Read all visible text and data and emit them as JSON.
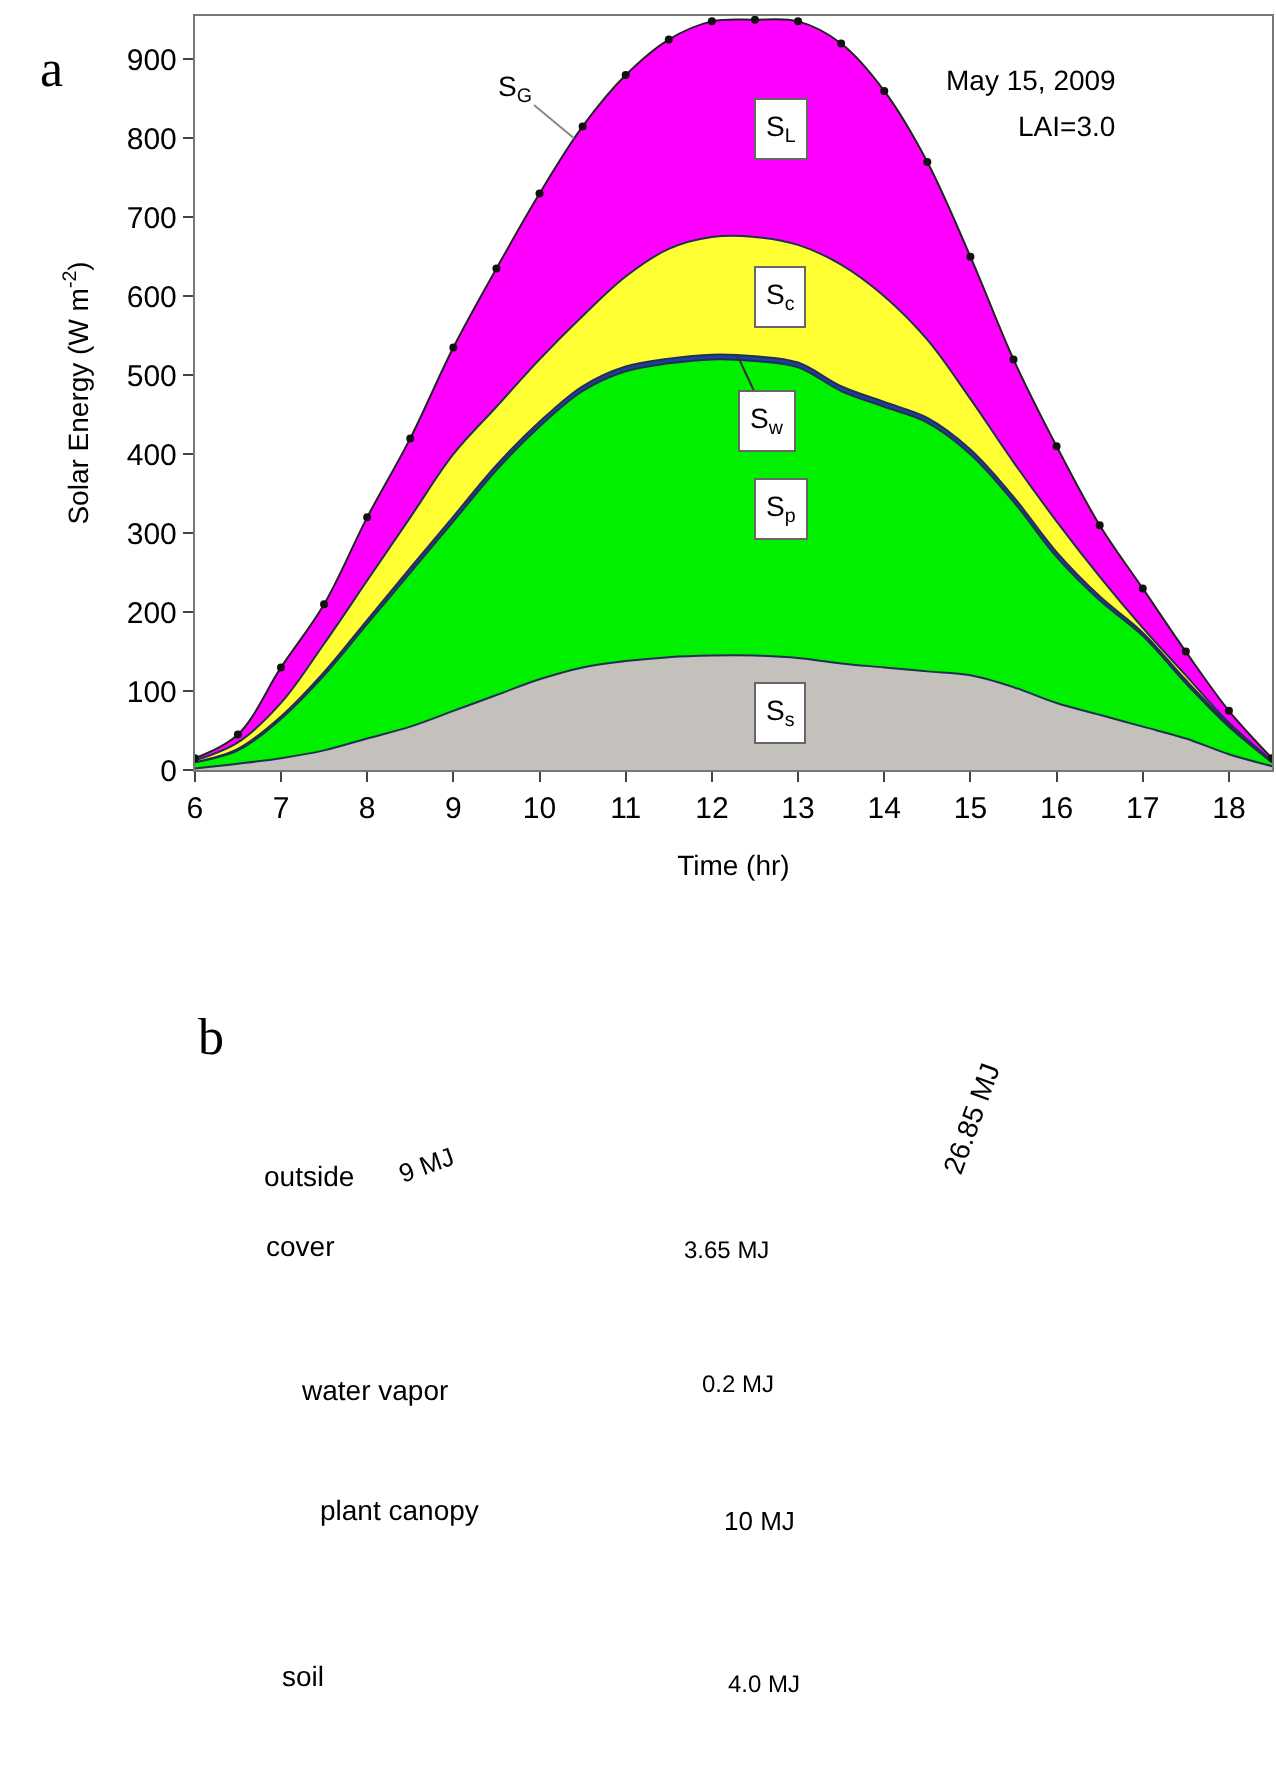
{
  "chart_data": [
    {
      "type": "area",
      "xlabel": "Time (hr)",
      "ylabel": "Solar Energy (W m$^{-2}$)",
      "x": [
        6,
        6.5,
        7,
        7.5,
        8,
        8.5,
        9,
        9.5,
        10,
        10.5,
        11,
        11.5,
        12,
        12.5,
        13,
        13.5,
        14,
        14.5,
        15,
        15.5,
        16,
        16.5,
        17,
        17.5,
        18,
        18.5
      ],
      "series": [
        {
          "name": "S$_{s}$",
          "color": "#c4c0bc",
          "marker": "none",
          "values": [
            2,
            8,
            15,
            25,
            40,
            55,
            75,
            95,
            115,
            130,
            138,
            143,
            145,
            145,
            142,
            135,
            130,
            125,
            120,
            105,
            85,
            70,
            55,
            40,
            20,
            5
          ]
        },
        {
          "name": "S$_{p}$",
          "color": "#00f000",
          "marker": "none",
          "values": [
            10,
            25,
            65,
            120,
            185,
            250,
            315,
            380,
            435,
            480,
            505,
            515,
            520,
            518,
            510,
            480,
            460,
            440,
            400,
            340,
            270,
            215,
            170,
            110,
            55,
            10
          ]
        },
        {
          "name": "S$_{w}$",
          "color": "#1f3f9f",
          "marker": "none",
          "values": [
            10,
            27,
            68,
            124,
            190,
            256,
            321,
            386,
            441,
            486,
            511,
            521,
            526,
            524,
            516,
            486,
            466,
            446,
            406,
            346,
            276,
            220,
            174,
            114,
            58,
            10
          ]
        },
        {
          "name": "S$_{c}$",
          "color": "#ffff33",
          "marker": "none",
          "values": [
            12,
            35,
            85,
            160,
            240,
            320,
            400,
            460,
            520,
            575,
            625,
            660,
            675,
            675,
            665,
            640,
            600,
            545,
            470,
            390,
            315,
            245,
            180,
            120,
            60,
            12
          ]
        },
        {
          "name": "S$_{L}$",
          "color": "#ff00ff",
          "marker": "circle",
          "values": [
            15,
            45,
            130,
            210,
            320,
            420,
            535,
            635,
            730,
            815,
            880,
            925,
            948,
            950,
            948,
            920,
            860,
            770,
            650,
            520,
            410,
            310,
            230,
            150,
            75,
            15
          ]
        }
      ],
      "xlim": [
        6,
        18.5
      ],
      "xticks": [
        6,
        7,
        8,
        9,
        10,
        11,
        12,
        13,
        14,
        15,
        16,
        17,
        18
      ],
      "ylim": [
        0,
        955
      ],
      "yticks": [
        0,
        100,
        200,
        300,
        400,
        500,
        600,
        700,
        800,
        900
      ],
      "legend": false,
      "annotations": [
        "a",
        {
          "text": "S$_{G}$",
          "x": 10.4,
          "y": 800
        },
        "May 15, 2009",
        "LAI=3.0"
      ]
    },
    {
      "type": "other",
      "annotations": [
        "b",
        "outside",
        "cover",
        "water vapor",
        "plant canopy",
        "soil",
        "9 MJ",
        "26.85 MJ",
        "3.65 MJ",
        "0.2 MJ",
        "10 MJ",
        "4.0 MJ"
      ]
    }
  ]
}
